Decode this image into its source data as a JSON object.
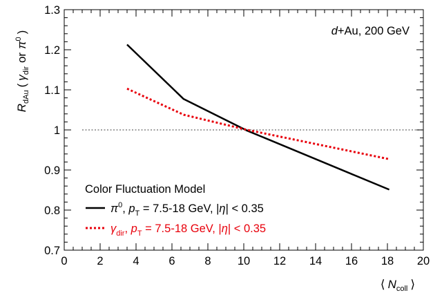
{
  "chart_data": {
    "type": "line",
    "title": "",
    "annotation": {
      "system_italic": "d",
      "system_rest": "+Au, 200 GeV"
    },
    "ylabel": {
      "main": "R",
      "main_sub": "dAu",
      "paren_open": "(",
      "gamma": "γ",
      "gamma_sub": "dir",
      "or": "or",
      "pi": "π",
      "pi_sup": "0",
      "paren_close": ")"
    },
    "xlabel": {
      "open": "⟨",
      "N": "N",
      "N_sub": "coll",
      "close": "⟩"
    },
    "xlim": [
      0,
      20
    ],
    "ylim": [
      0.7,
      1.3
    ],
    "xticks": [
      0,
      2,
      4,
      6,
      8,
      10,
      12,
      14,
      16,
      18,
      20
    ],
    "yticks": [
      0.7,
      0.8,
      0.9,
      1.0,
      1.1,
      1.2,
      1.3
    ],
    "ytick_labels": [
      "0.7",
      "0.8",
      "0.9",
      "1",
      "1.1",
      "1.2",
      "1.3"
    ],
    "reference_line": {
      "y": 1.0,
      "x_range": [
        1.0,
        20.0
      ],
      "style": "dotted",
      "color": "#666666"
    },
    "legend": {
      "header": "Color Fluctuation Model",
      "placement": "bottom-left"
    },
    "series": [
      {
        "key": "pi0",
        "color": "#000000",
        "style": "solid",
        "legend_sym": "π",
        "legend_sym_sup": "0",
        "legend_pt_p": "p",
        "legend_pt_sub": "T",
        "legend_range": " = 7.5-18 GeV, |",
        "legend_eta": "η",
        "legend_tail": "| < 0.35",
        "x": [
          3.5,
          6.65,
          10.2,
          18.1
        ],
        "y": [
          1.213,
          1.077,
          0.998,
          0.851
        ]
      },
      {
        "key": "gamma_dir",
        "color": "#e8000b",
        "style": "dotted",
        "legend_sym": "γ",
        "legend_sym_sub": "dir",
        "legend_pt_p": "p",
        "legend_pt_sub": "T",
        "legend_range": " = 7.5-18 GeV, |",
        "legend_eta": "η",
        "legend_tail": "| < 0.35",
        "x": [
          3.5,
          6.65,
          10.2,
          18.1
        ],
        "y": [
          1.103,
          1.038,
          1.0,
          0.927
        ]
      }
    ]
  }
}
